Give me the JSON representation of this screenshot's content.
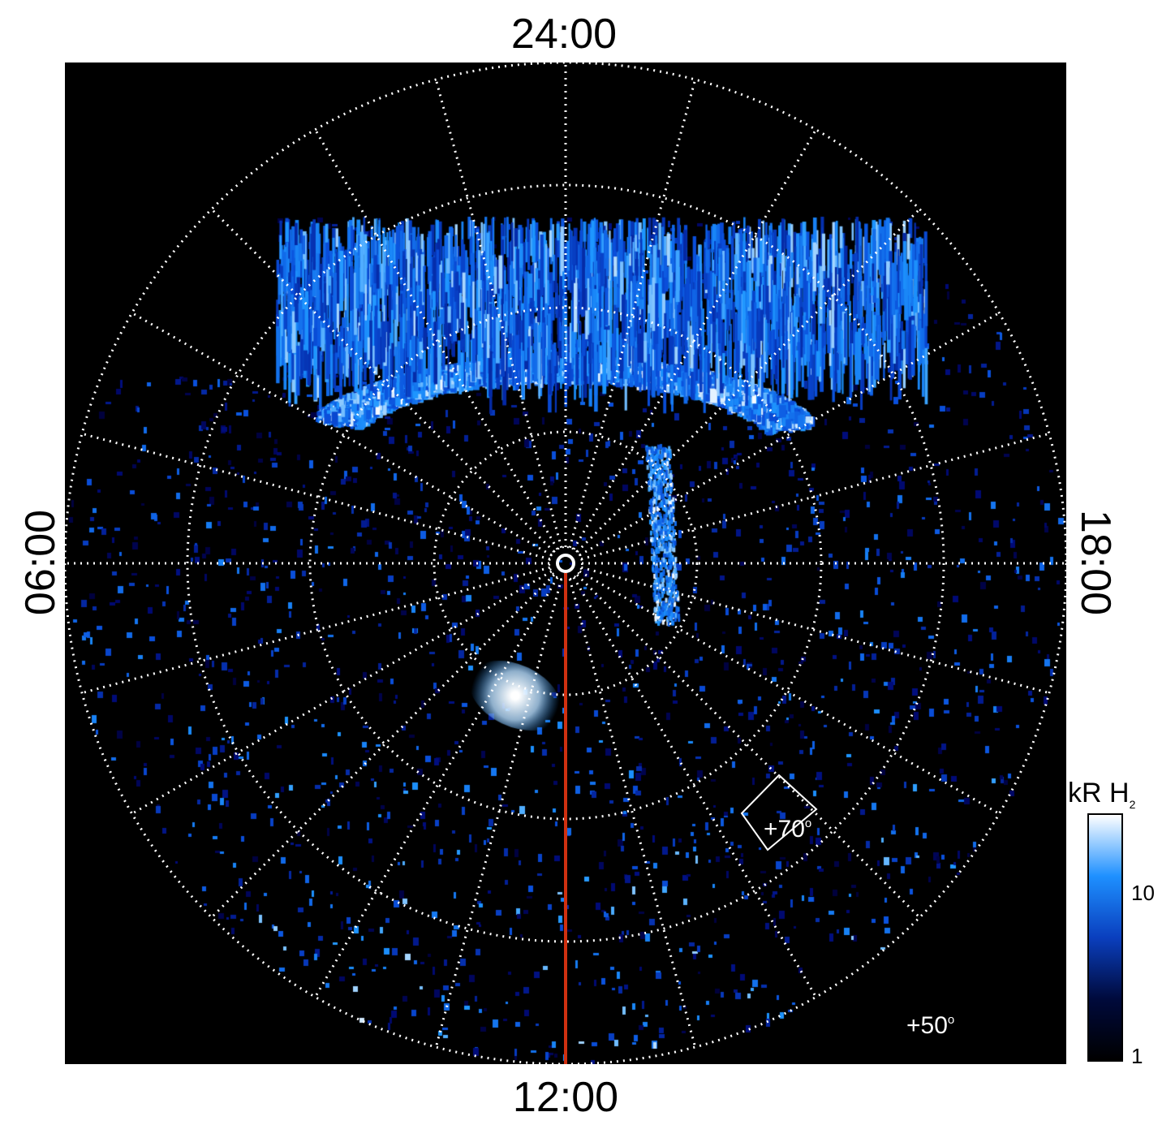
{
  "local_time_labels": {
    "top": "24:00",
    "bottom": "12:00",
    "left": "06:00",
    "right": "18:00"
  },
  "latitude_labels": {
    "inner": "+70",
    "outer": "+50",
    "degree_symbol": "o"
  },
  "colorbar": {
    "title": "kR H",
    "title_subscript": "2",
    "ticks": [
      "10",
      "1"
    ],
    "colors": [
      "#000000",
      "#000a3c",
      "#0a3fbe",
      "#1e90ff",
      "#ffffff"
    ]
  },
  "meridian_line_color": "#d03010",
  "grid_color": "#ffffff"
}
